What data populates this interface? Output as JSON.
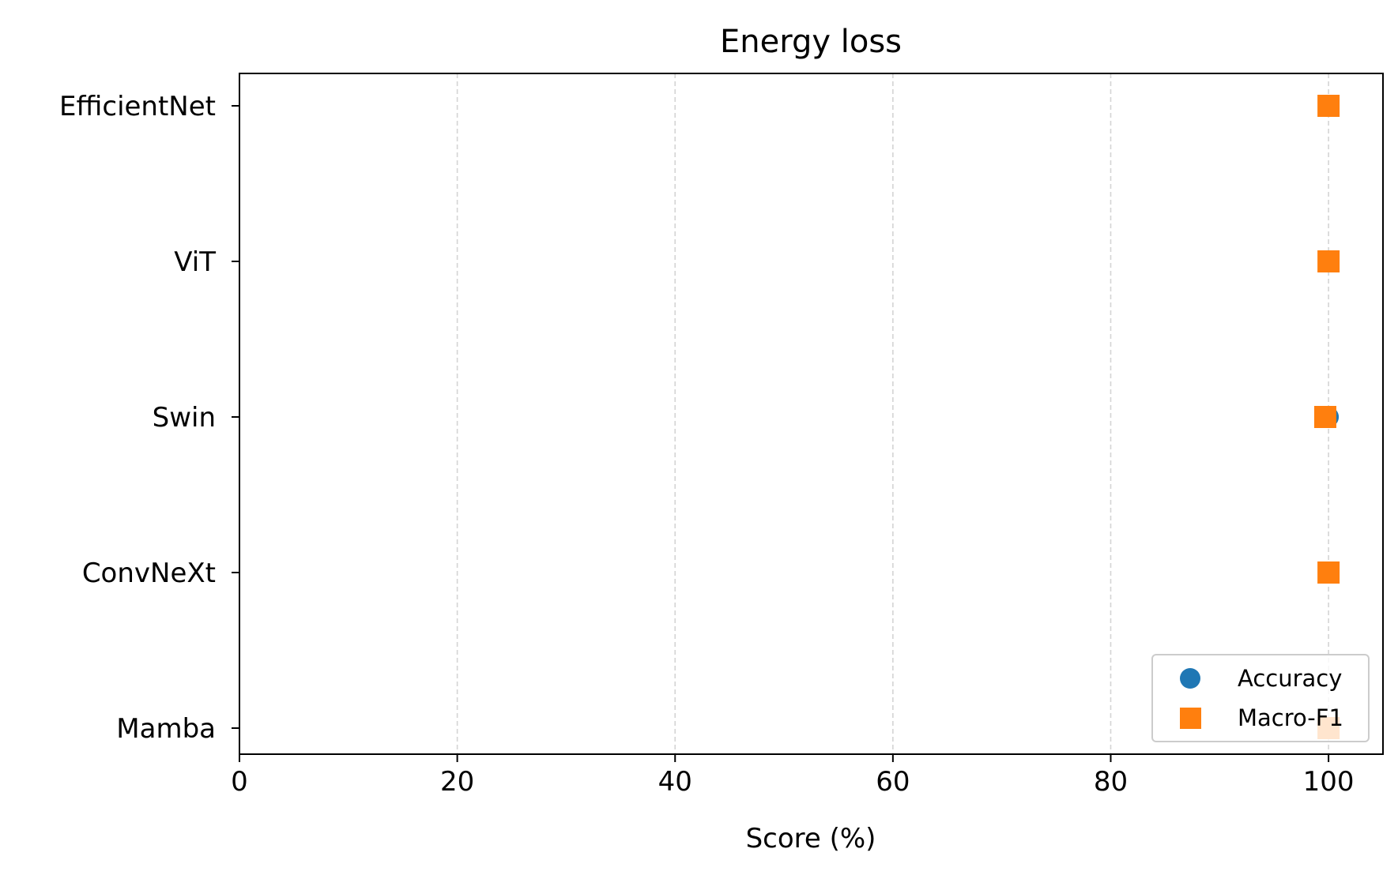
{
  "chart_data": {
    "type": "scatter",
    "title": "Energy loss",
    "xlabel": "Score (%)",
    "ylabel": "",
    "xlim": [
      0,
      105
    ],
    "xticks": [
      0,
      20,
      40,
      60,
      80,
      100
    ],
    "categories": [
      "EfficientNet",
      "ViT",
      "Swin",
      "ConvNeXt",
      "Mamba"
    ],
    "series": [
      {
        "name": "Accuracy",
        "marker": "circle",
        "color": "#1f77b4",
        "values": [
          100,
          100,
          100,
          100,
          100
        ]
      },
      {
        "name": "Macro-F1",
        "marker": "square",
        "color": "#ff7f0e",
        "values": [
          100,
          100,
          99.7,
          100,
          100
        ]
      }
    ],
    "grid": {
      "x": true,
      "y": false,
      "style": "dashed"
    },
    "legend_position": "lower right"
  }
}
